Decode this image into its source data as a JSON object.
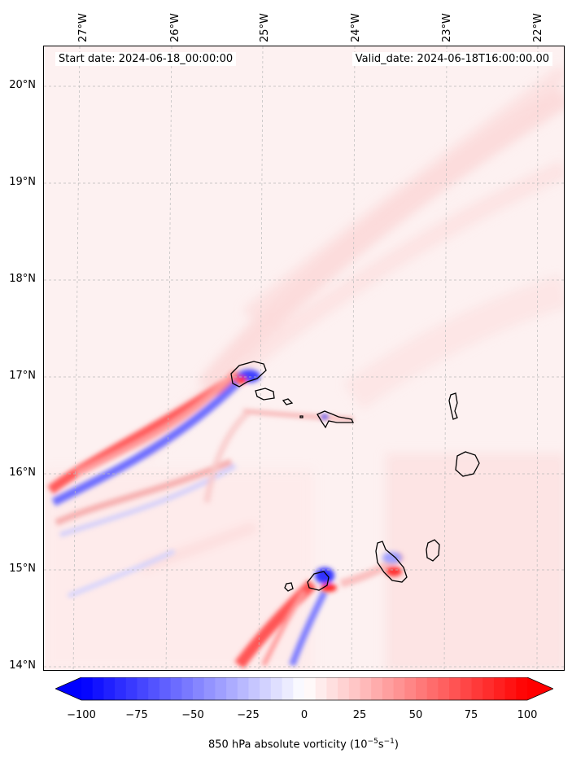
{
  "map": {
    "start_date_text": "Start date: 2024-06-18_00:00:00",
    "valid_date_text": "Valid_date: 2024-06-18T16:00:00.00",
    "lon_ticks": [
      "27°W",
      "26°W",
      "25°W",
      "24°W",
      "23°W",
      "22°W"
    ],
    "lat_ticks": [
      "20°N",
      "19°N",
      "18°N",
      "17°N",
      "16°N",
      "15°N",
      "14°N"
    ],
    "gridlines": true,
    "extent": {
      "lon_min": -27.4,
      "lon_max": -21.9,
      "lat_min": 13.95,
      "lat_max": 20.45
    },
    "coastlines": "Cabo Verde islands",
    "field": "850 hPa absolute vorticity",
    "colors": {
      "negative": "#0000ff",
      "zero": "#ffffff",
      "positive": "#ff0000",
      "coastline": "#000000"
    }
  },
  "colorbar": {
    "label_main": "850 hPa absolute vorticity (10",
    "label_sup1": "−5",
    "label_mid": "s",
    "label_sup2": "−1",
    "label_end": ")",
    "min": -100,
    "max": 100,
    "extend": "both",
    "ticks": [
      {
        "value": -100,
        "label": "−100"
      },
      {
        "value": -75,
        "label": "−75"
      },
      {
        "value": -50,
        "label": "−50"
      },
      {
        "value": -25,
        "label": "−25"
      },
      {
        "value": 0,
        "label": "0"
      },
      {
        "value": 25,
        "label": "25"
      },
      {
        "value": 50,
        "label": "50"
      },
      {
        "value": 75,
        "label": "75"
      },
      {
        "value": 100,
        "label": "100"
      }
    ]
  }
}
